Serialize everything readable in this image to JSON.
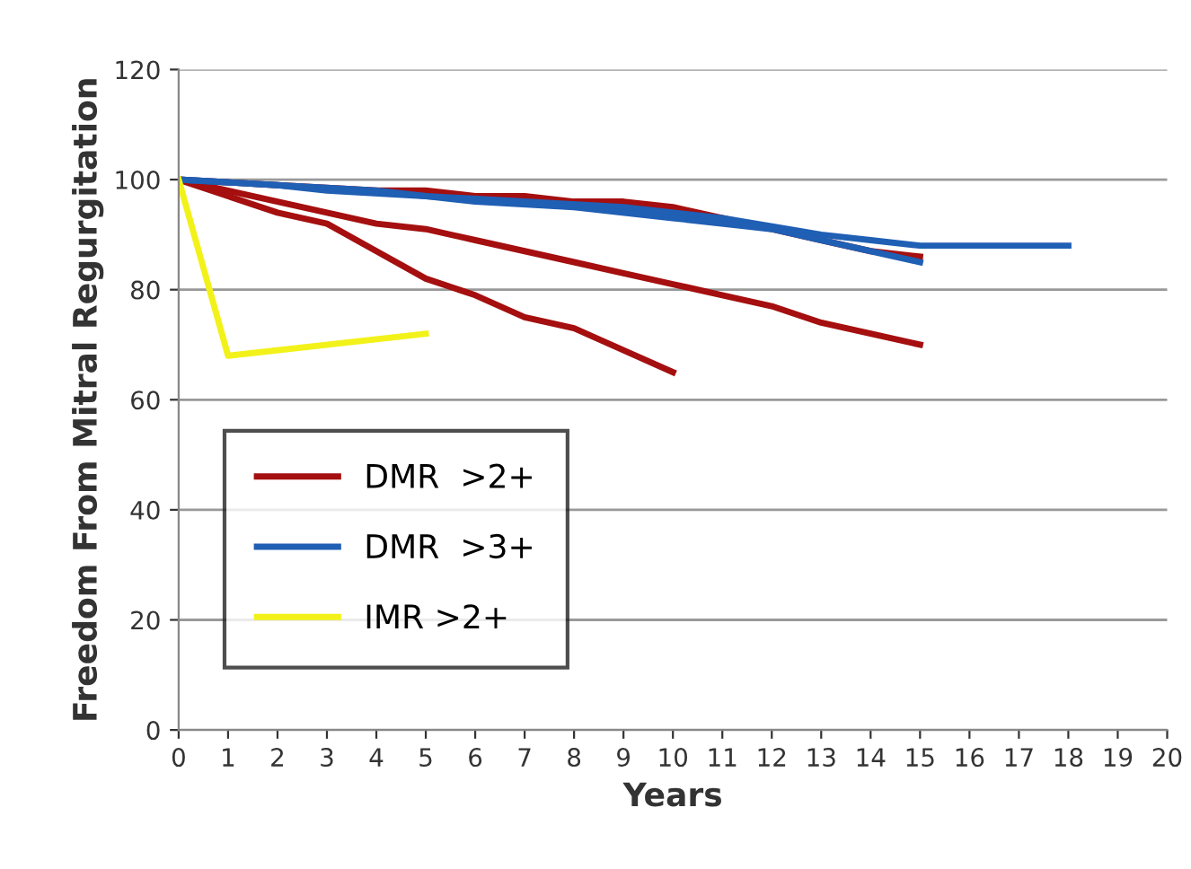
{
  "chart_data": {
    "type": "line",
    "xlabel": "Years",
    "ylabel": "Freedom From Mitral Regurgitation",
    "xlim": [
      0,
      20
    ],
    "xticks": [
      0,
      1,
      2,
      3,
      4,
      5,
      6,
      7,
      8,
      9,
      10,
      11,
      12,
      13,
      14,
      15,
      16,
      17,
      18,
      19,
      20
    ],
    "ylim": [
      0,
      120
    ],
    "yticks": [
      0,
      20,
      40,
      60,
      80,
      100,
      120
    ],
    "grid": "y",
    "legend": "left",
    "marker": "none",
    "line_style": "solid",
    "series": [
      {
        "name": "DMR  >2+",
        "color": "#a50f0f",
        "x": [
          0,
          1,
          2,
          3,
          4,
          5,
          6,
          7,
          8,
          9,
          10
        ],
        "values": [
          100,
          97,
          94,
          92,
          87,
          82,
          79,
          75,
          73,
          69,
          65
        ]
      },
      {
        "color": "#a50f0f",
        "x": [
          0,
          1,
          2,
          3,
          4,
          5,
          6,
          7,
          8,
          9,
          10,
          11,
          12,
          13,
          14,
          15
        ],
        "values": [
          100,
          98,
          96,
          94,
          92,
          91,
          89,
          87,
          85,
          83,
          81,
          79,
          77,
          74,
          72,
          70
        ]
      },
      {
        "color": "#a50f0f",
        "x": [
          0,
          2,
          4,
          5,
          6,
          7,
          8,
          9,
          10,
          11,
          12,
          13,
          14,
          15
        ],
        "values": [
          100,
          99,
          98,
          98,
          97,
          97,
          96,
          96,
          95,
          93,
          91,
          89,
          87,
          86
        ]
      },
      {
        "name": "DMR  >3+",
        "color": "#1f5fb4",
        "x": [
          0,
          2,
          3,
          5,
          7,
          9,
          11,
          13,
          14,
          15,
          18
        ],
        "values": [
          100,
          99,
          98,
          97,
          96,
          95,
          93,
          90,
          89,
          88,
          88
        ]
      },
      {
        "color": "#1f5fb4",
        "x": [
          0,
          2,
          4,
          6,
          8,
          10,
          12,
          13,
          14,
          15
        ],
        "values": [
          100,
          99,
          98,
          96,
          95,
          93,
          91,
          89,
          87,
          85
        ]
      },
      {
        "name": "IMR >2+",
        "color": "#f2f21a",
        "x": [
          0,
          1,
          5
        ],
        "values": [
          100,
          68,
          72
        ]
      }
    ]
  }
}
